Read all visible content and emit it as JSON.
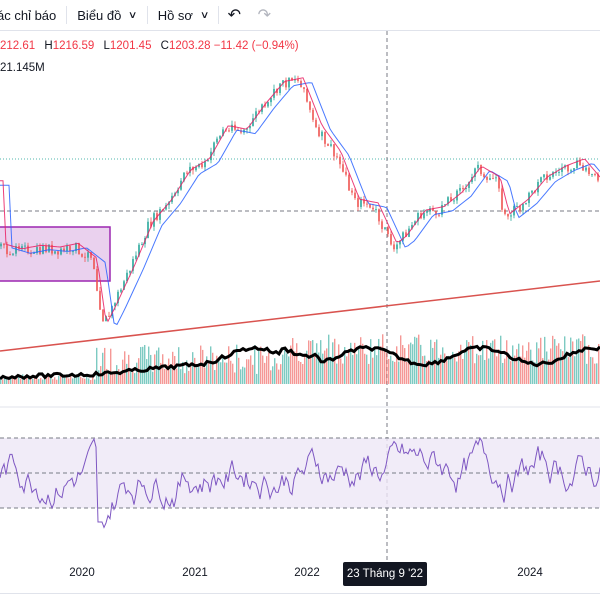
{
  "toolbar": {
    "indicators_label": "ác chỉ báo",
    "chart_type_label": "Biểu đồ",
    "templates_label": "Hồ sơ",
    "undo_icon": "undo-icon",
    "redo_icon": "redo-icon"
  },
  "legend": {
    "open": "212.61",
    "high_key": "H",
    "high": "1216.59",
    "low_key": "L",
    "low": "1201.45",
    "close_key": "C",
    "close": "1203.28",
    "change": "−11.42 (−0.94%)",
    "volume": "21.145M"
  },
  "time_axis": {
    "labels": [
      "2020",
      "2021",
      "2022",
      "2024"
    ],
    "crosshair_label": "23 Tháng 9 '22"
  },
  "colors": {
    "up": "#26a69a",
    "down": "#ef5350",
    "ma": "#2962ff",
    "trendline": "#d9534f",
    "rsi": "#7e57c2",
    "rect_fill": "#e1bee7",
    "rect_border": "#9c27b0"
  },
  "chart_data": {
    "type": "line",
    "x_start": "2019-04",
    "x_end": "2024-08",
    "price_series": [
      {
        "date": "2019-04",
        "value": 1240
      },
      {
        "date": "2019-06",
        "value": 1225
      },
      {
        "date": "2019-08",
        "value": 1235
      },
      {
        "date": "2019-10",
        "value": 1230
      },
      {
        "date": "2019-12",
        "value": 1240
      },
      {
        "date": "2020-02",
        "value": 1200
      },
      {
        "date": "2020-03",
        "value": 1020
      },
      {
        "date": "2020-04",
        "value": 1070
      },
      {
        "date": "2020-06",
        "value": 1180
      },
      {
        "date": "2020-08",
        "value": 1300
      },
      {
        "date": "2020-10",
        "value": 1360
      },
      {
        "date": "2020-12",
        "value": 1440
      },
      {
        "date": "2021-02",
        "value": 1470
      },
      {
        "date": "2021-04",
        "value": 1560
      },
      {
        "date": "2021-06",
        "value": 1550
      },
      {
        "date": "2021-08",
        "value": 1620
      },
      {
        "date": "2021-10",
        "value": 1680
      },
      {
        "date": "2021-12",
        "value": 1690
      },
      {
        "date": "2022-02",
        "value": 1560
      },
      {
        "date": "2022-04",
        "value": 1490
      },
      {
        "date": "2022-06",
        "value": 1360
      },
      {
        "date": "2022-08",
        "value": 1350
      },
      {
        "date": "2022-10",
        "value": 1240
      },
      {
        "date": "2022-11",
        "value": 1260
      },
      {
        "date": "2023-01",
        "value": 1330
      },
      {
        "date": "2023-03",
        "value": 1340
      },
      {
        "date": "2023-05",
        "value": 1380
      },
      {
        "date": "2023-07",
        "value": 1450
      },
      {
        "date": "2023-09",
        "value": 1420
      },
      {
        "date": "2023-10",
        "value": 1320
      },
      {
        "date": "2023-12",
        "value": 1360
      },
      {
        "date": "2024-02",
        "value": 1420
      },
      {
        "date": "2024-04",
        "value": 1450
      },
      {
        "date": "2024-06",
        "value": 1470
      },
      {
        "date": "2024-08",
        "value": 1410
      }
    ],
    "rsi_levels": [
      70,
      50,
      30
    ]
  }
}
